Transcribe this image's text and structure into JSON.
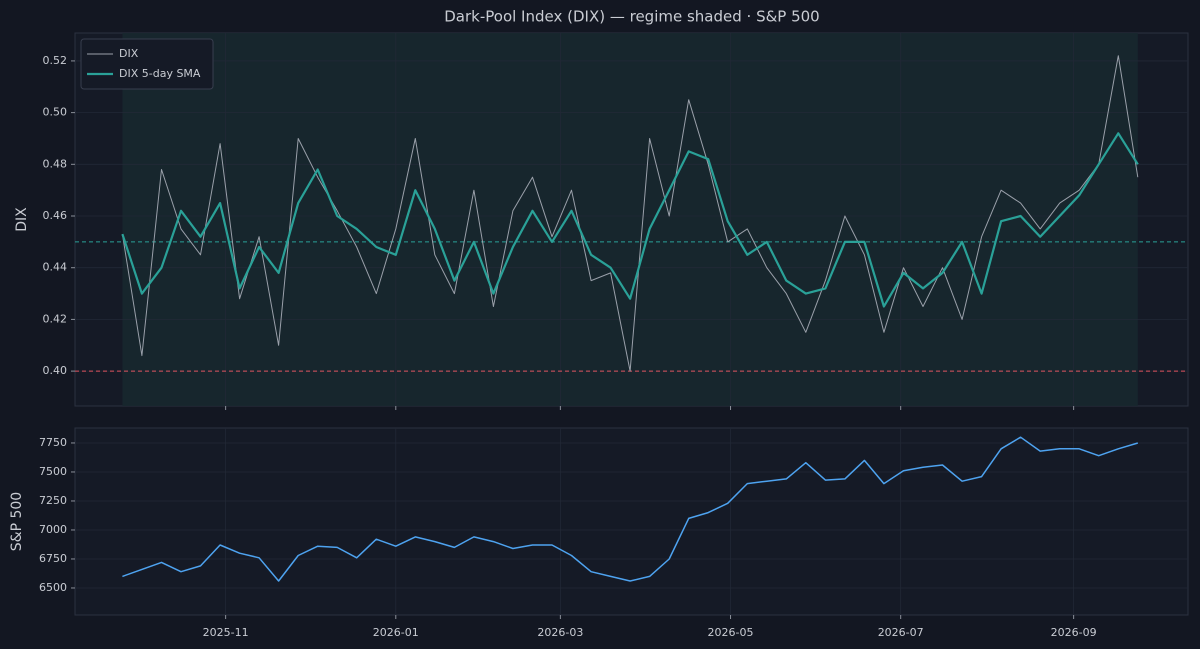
{
  "chart_data": [
    {
      "type": "line",
      "title": "Dark-Pool Index (DIX) — regime shaded · S&P 500",
      "ylabel": "DIX",
      "x": [
        "2025-09-25",
        "2025-10-02",
        "2025-10-09",
        "2025-10-16",
        "2025-10-23",
        "2025-10-30",
        "2025-11-06",
        "2025-11-13",
        "2025-11-20",
        "2025-11-27",
        "2025-12-04",
        "2025-12-11",
        "2025-12-18",
        "2025-12-25",
        "2026-01-01",
        "2026-01-08",
        "2026-01-15",
        "2026-01-22",
        "2026-01-29",
        "2026-02-05",
        "2026-02-12",
        "2026-02-19",
        "2026-02-26",
        "2026-03-05",
        "2026-03-12",
        "2026-03-19",
        "2026-03-26",
        "2026-04-02",
        "2026-04-09",
        "2026-04-16",
        "2026-04-23",
        "2026-04-30",
        "2026-05-07",
        "2026-05-14",
        "2026-05-21",
        "2026-05-28",
        "2026-06-04",
        "2026-06-11",
        "2026-06-18",
        "2026-06-25",
        "2026-07-02",
        "2026-07-09",
        "2026-07-16",
        "2026-07-23",
        "2026-07-30",
        "2026-08-06",
        "2026-08-13",
        "2026-08-20",
        "2026-08-27",
        "2026-09-03",
        "2026-09-10",
        "2026-09-17",
        "2026-09-24"
      ],
      "series": [
        {
          "name": "DIX",
          "color": "#9aa0aa",
          "width": 1,
          "values": [
            0.453,
            0.406,
            0.478,
            0.455,
            0.445,
            0.488,
            0.428,
            0.452,
            0.41,
            0.49,
            0.475,
            0.462,
            0.448,
            0.43,
            0.455,
            0.49,
            0.445,
            0.43,
            0.47,
            0.425,
            0.462,
            0.475,
            0.452,
            0.47,
            0.435,
            0.438,
            0.4,
            0.49,
            0.46,
            0.505,
            0.48,
            0.45,
            0.455,
            0.44,
            0.43,
            0.415,
            0.435,
            0.46,
            0.445,
            0.415,
            0.44,
            0.425,
            0.44,
            0.42,
            0.452,
            0.47,
            0.465,
            0.455,
            0.465,
            0.47,
            0.48,
            0.522,
            0.475
          ]
        },
        {
          "name": "DIX 5-day SMA",
          "color": "#2aa198",
          "width": 2.2,
          "values": [
            0.453,
            0.43,
            0.44,
            0.462,
            0.452,
            0.465,
            0.432,
            0.448,
            0.438,
            0.465,
            0.478,
            0.46,
            0.455,
            0.448,
            0.445,
            0.47,
            0.455,
            0.435,
            0.45,
            0.43,
            0.448,
            0.462,
            0.45,
            0.462,
            0.445,
            0.44,
            0.428,
            0.455,
            0.47,
            0.485,
            0.482,
            0.458,
            0.445,
            0.45,
            0.435,
            0.43,
            0.432,
            0.45,
            0.45,
            0.425,
            0.438,
            0.432,
            0.438,
            0.45,
            0.43,
            0.458,
            0.46,
            0.452,
            0.46,
            0.468,
            0.48,
            0.492,
            0.48
          ]
        }
      ],
      "hlines": [
        {
          "value": 0.45,
          "color": "#2aa198"
        },
        {
          "value": 0.4,
          "color": "#e05561"
        }
      ],
      "shade": true,
      "legend": "upper left",
      "grid": true,
      "xlim": [
        "2025-09-08",
        "2026-10-12"
      ],
      "ylim": [
        0.3865,
        0.5308
      ],
      "yticks": [
        {
          "value": 0.4,
          "label": "0.40"
        },
        {
          "value": 0.42,
          "label": "0.42"
        },
        {
          "value": 0.44,
          "label": "0.44"
        },
        {
          "value": 0.46,
          "label": "0.46"
        },
        {
          "value": 0.48,
          "label": "0.48"
        },
        {
          "value": 0.5,
          "label": "0.50"
        },
        {
          "value": 0.52,
          "label": "0.52"
        }
      ]
    },
    {
      "type": "line",
      "ylabel": "S&P 500",
      "x": [
        "2025-09-25",
        "2025-10-02",
        "2025-10-09",
        "2025-10-16",
        "2025-10-23",
        "2025-10-30",
        "2025-11-06",
        "2025-11-13",
        "2025-11-20",
        "2025-11-27",
        "2025-12-04",
        "2025-12-11",
        "2025-12-18",
        "2025-12-25",
        "2026-01-01",
        "2026-01-08",
        "2026-01-15",
        "2026-01-22",
        "2026-01-29",
        "2026-02-05",
        "2026-02-12",
        "2026-02-19",
        "2026-02-26",
        "2026-03-05",
        "2026-03-12",
        "2026-03-19",
        "2026-03-26",
        "2026-04-02",
        "2026-04-09",
        "2026-04-16",
        "2026-04-23",
        "2026-04-30",
        "2026-05-07",
        "2026-05-14",
        "2026-05-21",
        "2026-05-28",
        "2026-06-04",
        "2026-06-11",
        "2026-06-18",
        "2026-06-25",
        "2026-07-02",
        "2026-07-09",
        "2026-07-16",
        "2026-07-23",
        "2026-07-30",
        "2026-08-06",
        "2026-08-13",
        "2026-08-20",
        "2026-08-27",
        "2026-09-03",
        "2026-09-10",
        "2026-09-17",
        "2026-09-24"
      ],
      "series": [
        {
          "color": "#4ea3f0",
          "width": 1.5,
          "values": [
            6600,
            6660,
            6720,
            6640,
            6690,
            6870,
            6800,
            6760,
            6560,
            6780,
            6860,
            6850,
            6760,
            6920,
            6860,
            6940,
            6900,
            6850,
            6940,
            6900,
            6840,
            6870,
            6870,
            6780,
            6640,
            6600,
            6560,
            6600,
            6750,
            7100,
            7150,
            7230,
            7400,
            7420,
            7440,
            7580,
            7430,
            7440,
            7600,
            7400,
            7510,
            7540,
            7560,
            7420,
            7460,
            7700,
            7800,
            7680,
            7700,
            7700,
            7640,
            7700,
            7750
          ]
        }
      ],
      "grid": true,
      "xlim": [
        "2025-09-08",
        "2026-10-12"
      ],
      "xticks": [
        {
          "value": "2025-11-01",
          "label": "2025-11"
        },
        {
          "value": "2026-01-01",
          "label": "2026-01"
        },
        {
          "value": "2026-03-01",
          "label": "2026-03"
        },
        {
          "value": "2026-05-01",
          "label": "2026-05"
        },
        {
          "value": "2026-07-01",
          "label": "2026-07"
        },
        {
          "value": "2026-09-01",
          "label": "2026-09"
        }
      ],
      "ylim": [
        6267,
        7879
      ],
      "yticks": [
        6500,
        6750,
        7000,
        7250,
        7500,
        7750
      ]
    }
  ]
}
